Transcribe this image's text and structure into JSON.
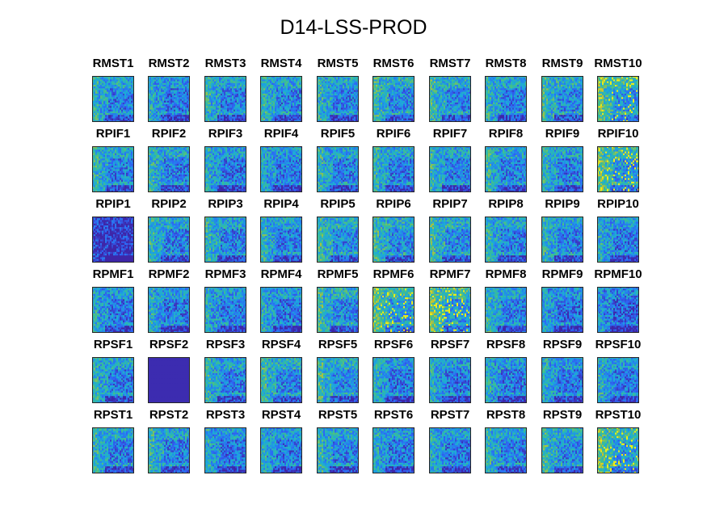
{
  "title": "D14-LSS-PROD",
  "chart_data": {
    "type": "heatmap",
    "title": "D14-LSS-PROD",
    "grid": "6 rows x 10 columns of small heatmap panels",
    "colormap": [
      "#3e26a8",
      "#2e66f6",
      "#1ba9dc",
      "#3ec08e",
      "#c9c12c",
      "#f9fb0e"
    ],
    "frame_color": "#262626",
    "rows": [
      {
        "prefix": "RMST",
        "titles": [
          "RMST1",
          "RMST2",
          "RMST3",
          "RMST4",
          "RMST5",
          "RMST6",
          "RMST7",
          "RMST8",
          "RMST9",
          "RMST10"
        ],
        "intensity": [
          0.55,
          0.5,
          0.55,
          0.55,
          0.55,
          0.6,
          0.6,
          0.55,
          0.6,
          0.7
        ]
      },
      {
        "prefix": "RPIF",
        "titles": [
          "RPIF1",
          "RPIF2",
          "RPIF3",
          "RPIF4",
          "RPIF5",
          "RPIF6",
          "RPIF7",
          "RPIF8",
          "RPIF9",
          "RPIF10"
        ],
        "intensity": [
          0.55,
          0.55,
          0.5,
          0.5,
          0.55,
          0.55,
          0.55,
          0.55,
          0.55,
          0.7
        ]
      },
      {
        "prefix": "RPIP",
        "titles": [
          "RPIP1",
          "RPIP2",
          "RPIP3",
          "RPIP4",
          "RPIP5",
          "RPIP6",
          "RPIP7",
          "RPIP8",
          "RPIP9",
          "RPIP10"
        ],
        "intensity": [
          0.1,
          0.55,
          0.55,
          0.55,
          0.6,
          0.6,
          0.6,
          0.55,
          0.55,
          0.5
        ]
      },
      {
        "prefix": "RPMF",
        "titles": [
          "RPMF1",
          "RPMF2",
          "RPMF3",
          "RPMF4",
          "RPMF5",
          "RPMF6",
          "RPMF7",
          "RPMF8",
          "RPMF9",
          "RPMF10"
        ],
        "intensity": [
          0.5,
          0.5,
          0.5,
          0.5,
          0.6,
          0.7,
          0.7,
          0.55,
          0.45,
          0.4
        ]
      },
      {
        "prefix": "RPSF",
        "titles": [
          "RPSF1",
          "RPSF2",
          "RPSF3",
          "RPSF4",
          "RPSF5",
          "RPSF6",
          "RPSF7",
          "RPSF8",
          "RPSF9",
          "RPSF10"
        ],
        "intensity": [
          0.55,
          0.0,
          0.55,
          0.6,
          0.6,
          0.5,
          0.5,
          0.5,
          0.5,
          0.5
        ]
      },
      {
        "prefix": "RPST",
        "titles": [
          "RPST1",
          "RPST2",
          "RPST3",
          "RPST4",
          "RPST5",
          "RPST6",
          "RPST7",
          "RPST8",
          "RPST9",
          "RPST10"
        ],
        "intensity": [
          0.55,
          0.55,
          0.5,
          0.5,
          0.55,
          0.5,
          0.5,
          0.55,
          0.6,
          0.7
        ]
      }
    ]
  }
}
